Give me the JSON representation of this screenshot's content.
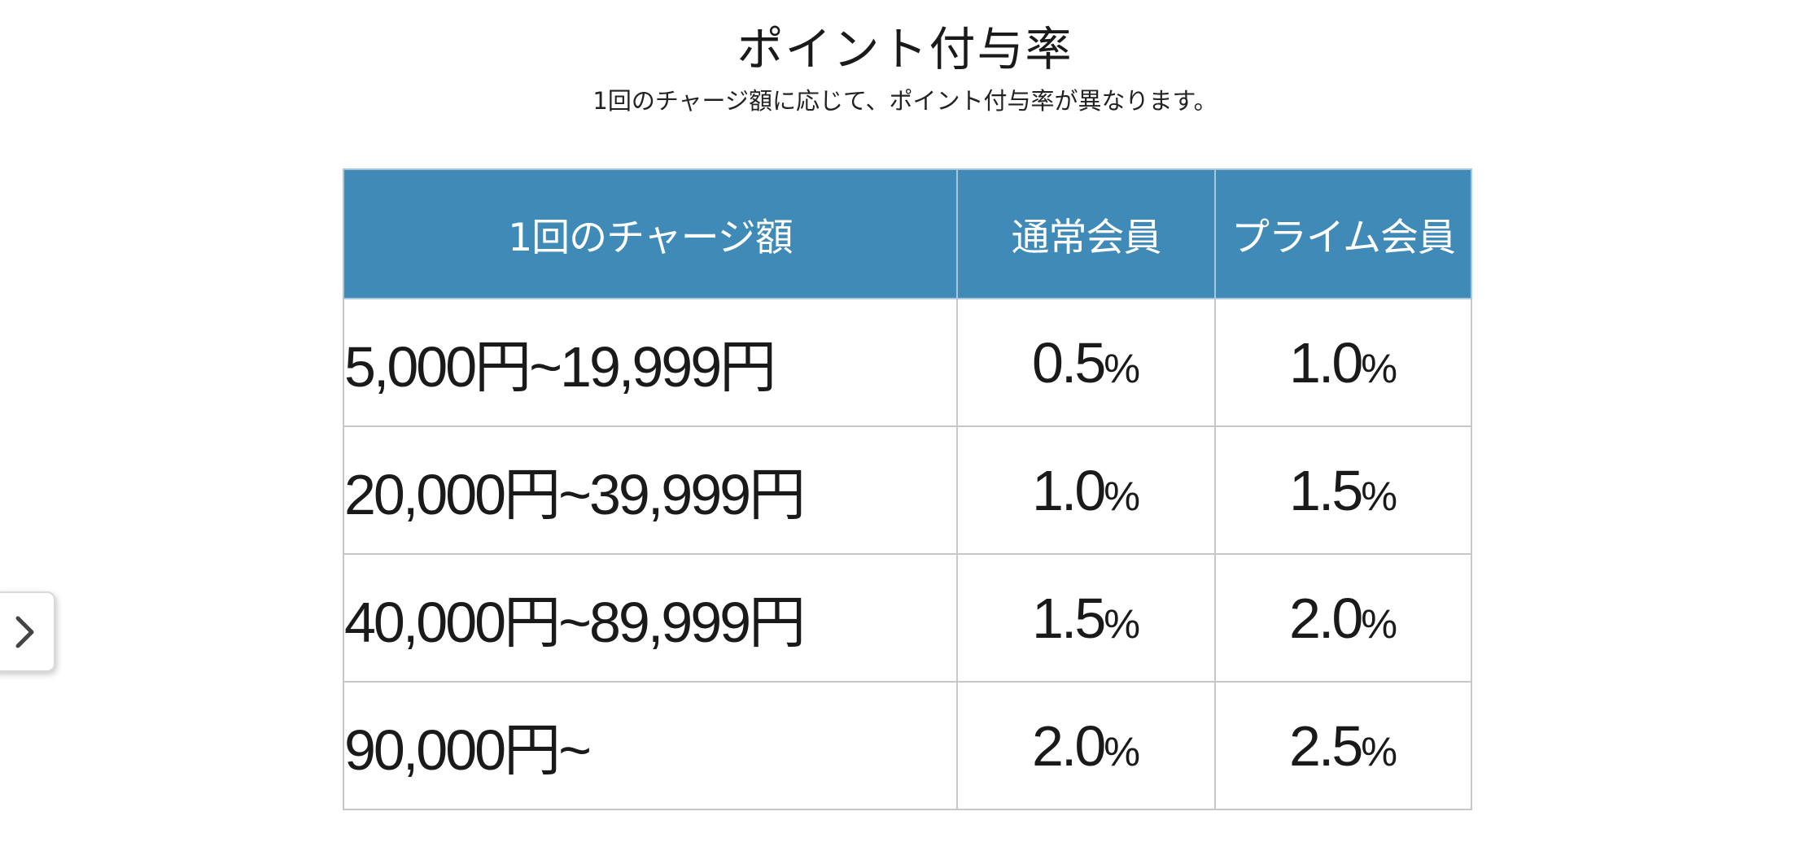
{
  "header": {
    "title": "ポイント付与率",
    "subtitle": "1回のチャージ額に応じて、ポイント付与率が異なります。"
  },
  "table": {
    "columns": [
      "1回のチャージ額",
      "通常会員",
      "プライム会員"
    ],
    "rows": [
      {
        "amount": "5,000円~19,999円",
        "normal": "0.5",
        "prime": "1.0"
      },
      {
        "amount": "20,000円~39,999円",
        "normal": "1.0",
        "prime": "1.5"
      },
      {
        "amount": "40,000円~89,999円",
        "normal": "1.5",
        "prime": "2.0"
      },
      {
        "amount": "90,000円~",
        "normal": "2.0",
        "prime": "2.5"
      }
    ],
    "percent_symbol": "%"
  },
  "side_toggle": {
    "icon": "chevron-right-icon"
  },
  "colors": {
    "header_bg": "#3f8ab6",
    "header_text": "#ffffff",
    "border": "#c7c7c7"
  }
}
